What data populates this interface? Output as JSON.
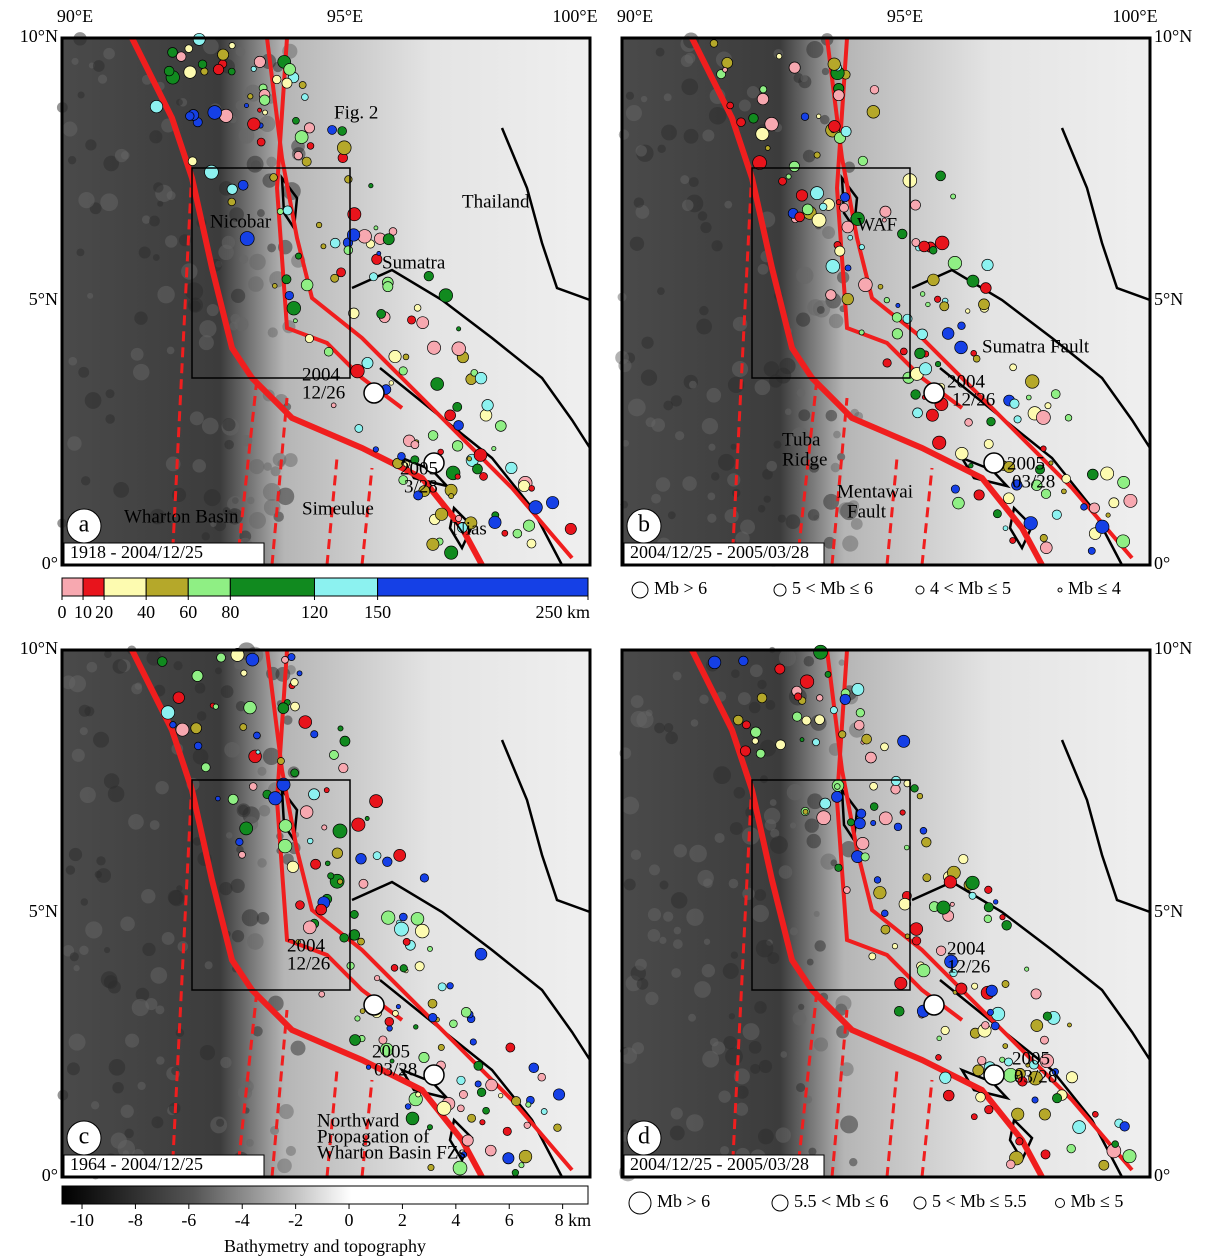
{
  "axes": {
    "lon_labels": [
      "90°E",
      "95°E",
      "100°E"
    ],
    "lat_labels": [
      "10°N",
      "5°N",
      "0°"
    ]
  },
  "panels": [
    {
      "letter": "a",
      "period": "1918 - 2004/12/25",
      "annotations": [
        "Fig. 2",
        "Thailand",
        "Nicobar",
        "Sumatra",
        "2004",
        "12/26",
        "2005",
        "3/28",
        "Wharton Basin",
        "Simeulue",
        "Nias"
      ]
    },
    {
      "letter": "b",
      "period": "2004/12/25 - 2005/03/28",
      "annotations": [
        "WAF",
        "Sumatra Fault",
        "2004",
        "12/26",
        "2005",
        "03/28",
        "Tuba",
        "Ridge",
        "Mentawai",
        "Fault"
      ]
    },
    {
      "letter": "c",
      "period": "1964 - 2004/12/25",
      "annotations": [
        "2004",
        "12/26",
        "2005",
        "03/28",
        "Northward",
        "Propagation of",
        "Wharton Basin FZs"
      ]
    },
    {
      "letter": "d",
      "period": "2004/12/25 - 2005/03/28",
      "annotations": [
        "2004",
        "12/26",
        "2005",
        "03/28"
      ]
    }
  ],
  "depth_scale": {
    "lim": [
      0,
      250
    ],
    "ticks": [
      0,
      10,
      20,
      40,
      60,
      80,
      120,
      150,
      {
        "value": 250,
        "label": "250 km"
      }
    ],
    "colors": [
      "#f7a8b0",
      "#e8141c",
      "#fdfbb0",
      "#b5a82a",
      "#8fef84",
      "#118a1f",
      "#8cf2f0",
      "#1540e6"
    ]
  },
  "magnitude_legends": [
    [
      "Mb > 6",
      "5 < Mb ≤ 6",
      "4 < Mb ≤ 5",
      "Mb ≤ 4"
    ],
    [
      "Mb > 6",
      "5.5 < Mb ≤ 6",
      "5 < Mb ≤ 5.5",
      "Mb ≤ 5"
    ]
  ],
  "bathymetry_scale": {
    "title": "Bathymetry and topography",
    "lim": [
      -10.75,
      8.95
    ],
    "ticks": [
      -10,
      -8,
      -6,
      -4,
      -2,
      0,
      2,
      4,
      6,
      {
        "value": 8,
        "label": "8 km"
      }
    ]
  }
}
